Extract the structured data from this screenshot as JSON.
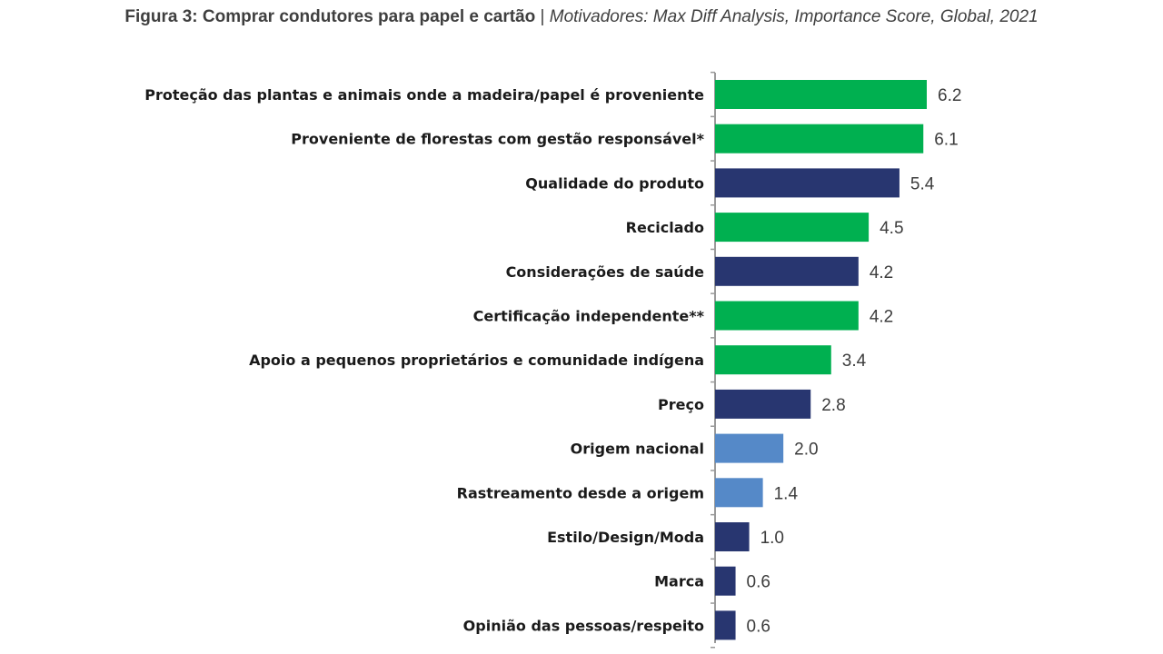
{
  "title": {
    "bold": "Figura 3: Comprar condutores para papel e cartão",
    "separator": " | ",
    "italic": "Motivadores: Max Diff Analysis, Importance Score, Global, 2021"
  },
  "colors": {
    "green": "#00b050",
    "navy": "#283670",
    "lightblue": "#5589c8",
    "axis": "#9a9a9a"
  },
  "chart_data": {
    "type": "bar",
    "orientation": "horizontal",
    "xlim": [
      0,
      6.2
    ],
    "grid": false,
    "legend": "none",
    "categories": [
      "Proteção das plantas e animais onde a madeira/papel  é proveniente",
      "Proveniente de florestas com gestão responsável*",
      "Qualidade  do produto",
      "Reciclado",
      "Considerações  de saúde",
      "Certificação  independente**",
      "Apoio a pequenos proprietários  e comunidade  indígena",
      "Preço",
      "Origem nacional",
      "Rastreamento desde a origem",
      "Estilo/Design/Moda",
      "Marca",
      "Opinião  das pessoas/respeito"
    ],
    "values": [
      6.2,
      6.1,
      5.4,
      4.5,
      4.2,
      4.2,
      3.4,
      2.8,
      2.0,
      1.4,
      1.0,
      0.6,
      0.6
    ],
    "value_labels": [
      "6.2",
      "6.1",
      "5.4",
      "4.5",
      "4.2",
      "4.2",
      "3.4",
      "2.8",
      "2.0",
      "1.4",
      "1.0",
      "0.6",
      "0.6"
    ],
    "bar_colors": [
      "green",
      "green",
      "navy",
      "green",
      "navy",
      "green",
      "green",
      "navy",
      "lightblue",
      "lightblue",
      "navy",
      "navy",
      "navy"
    ]
  }
}
